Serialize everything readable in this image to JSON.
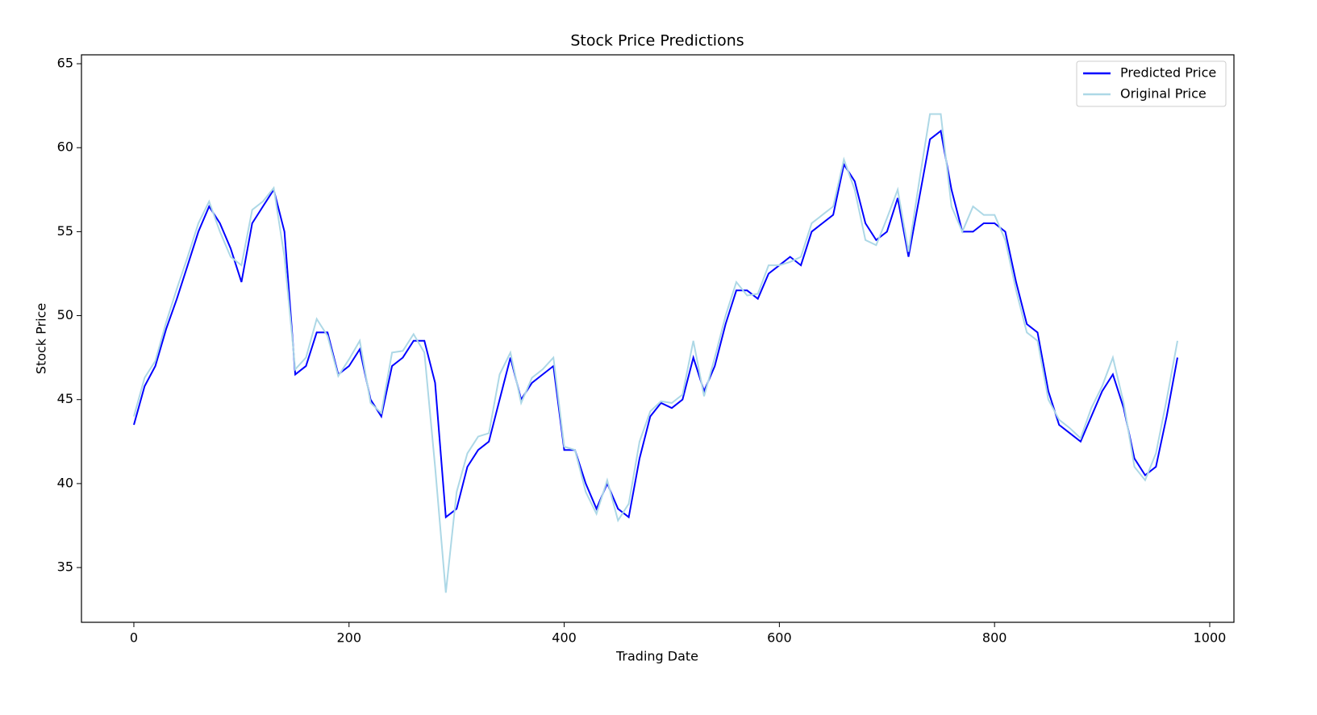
{
  "chart_data": {
    "type": "line",
    "title": "Stock Price Predictions",
    "x_label": "Trading Date",
    "y_label": "Stock Price",
    "x": [
      0,
      10,
      20,
      30,
      40,
      50,
      60,
      70,
      80,
      90,
      100,
      110,
      120,
      130,
      140,
      150,
      160,
      170,
      180,
      190,
      200,
      210,
      220,
      230,
      240,
      250,
      260,
      270,
      280,
      290,
      300,
      310,
      320,
      330,
      340,
      350,
      360,
      370,
      380,
      390,
      400,
      410,
      420,
      430,
      440,
      450,
      460,
      470,
      480,
      490,
      500,
      510,
      520,
      530,
      540,
      550,
      560,
      570,
      580,
      590,
      600,
      610,
      620,
      630,
      640,
      650,
      660,
      670,
      680,
      690,
      700,
      710,
      720,
      730,
      740,
      750,
      760,
      770,
      780,
      790,
      800,
      810,
      820,
      830,
      840,
      850,
      860,
      870,
      880,
      890,
      900,
      910,
      920,
      930,
      940,
      950,
      960,
      970
    ],
    "series": [
      {
        "name": "Predicted Price",
        "color": "#0000ff",
        "values": [
          43.5,
          45.8,
          47.0,
          49.2,
          51.0,
          53.0,
          55.0,
          56.5,
          55.5,
          54.0,
          52.0,
          55.5,
          56.5,
          57.5,
          55.0,
          46.5,
          47.0,
          49.0,
          49.0,
          46.5,
          47.0,
          48.0,
          45.0,
          44.0,
          47.0,
          47.5,
          48.5,
          48.5,
          46.0,
          38.0,
          38.5,
          41.0,
          42.0,
          42.5,
          45.0,
          47.5,
          45.0,
          46.0,
          46.5,
          47.0,
          42.0,
          42.0,
          40.0,
          38.5,
          40.0,
          38.5,
          38.0,
          41.5,
          44.0,
          44.8,
          44.5,
          45.0,
          47.5,
          45.5,
          47.0,
          49.5,
          51.5,
          51.5,
          51.0,
          52.5,
          53.0,
          53.5,
          53.0,
          55.0,
          55.5,
          56.0,
          59.0,
          58.0,
          55.5,
          54.5,
          55.0,
          57.0,
          53.5,
          57.0,
          60.5,
          61.0,
          57.5,
          55.0,
          55.0,
          55.5,
          55.5,
          55.0,
          52.0,
          49.5,
          49.0,
          45.5,
          43.5,
          43.0,
          42.5,
          44.0,
          45.5,
          46.5,
          44.5,
          41.5,
          40.5,
          41.0,
          44.0,
          47.5
        ]
      },
      {
        "name": "Original Price",
        "color": "#add8e6",
        "values": [
          44.0,
          46.3,
          47.3,
          49.6,
          51.6,
          53.5,
          55.5,
          56.8,
          55.0,
          53.5,
          53.0,
          56.3,
          56.8,
          57.6,
          53.5,
          46.8,
          47.5,
          49.8,
          48.8,
          46.4,
          47.4,
          48.5,
          44.8,
          44.2,
          47.8,
          47.9,
          48.9,
          47.8,
          41.0,
          33.5,
          39.5,
          41.8,
          42.8,
          43.0,
          46.5,
          47.8,
          44.8,
          46.3,
          46.8,
          47.5,
          42.2,
          42.0,
          39.5,
          38.2,
          40.2,
          37.8,
          38.8,
          42.5,
          44.3,
          44.9,
          44.8,
          45.3,
          48.5,
          45.2,
          47.5,
          50.0,
          52.0,
          51.2,
          51.3,
          53.0,
          53.0,
          53.2,
          53.5,
          55.5,
          56.0,
          56.5,
          59.3,
          57.5,
          54.5,
          54.2,
          55.8,
          57.5,
          53.8,
          58.0,
          62.0,
          62.0,
          56.5,
          55.0,
          56.5,
          56.0,
          56.0,
          54.5,
          51.5,
          49.0,
          48.5,
          45.0,
          43.8,
          43.3,
          42.7,
          44.5,
          45.8,
          47.5,
          44.8,
          41.0,
          40.2,
          41.8,
          45.0,
          48.5
        ]
      }
    ],
    "xlim": [
      -48.7,
      1022.5
    ],
    "ylim": [
      31.74,
      65.53
    ],
    "xticks": [
      0,
      200,
      400,
      600,
      800,
      1000
    ],
    "yticks": [
      35,
      40,
      45,
      50,
      55,
      60,
      65
    ],
    "legend": "upper right"
  }
}
